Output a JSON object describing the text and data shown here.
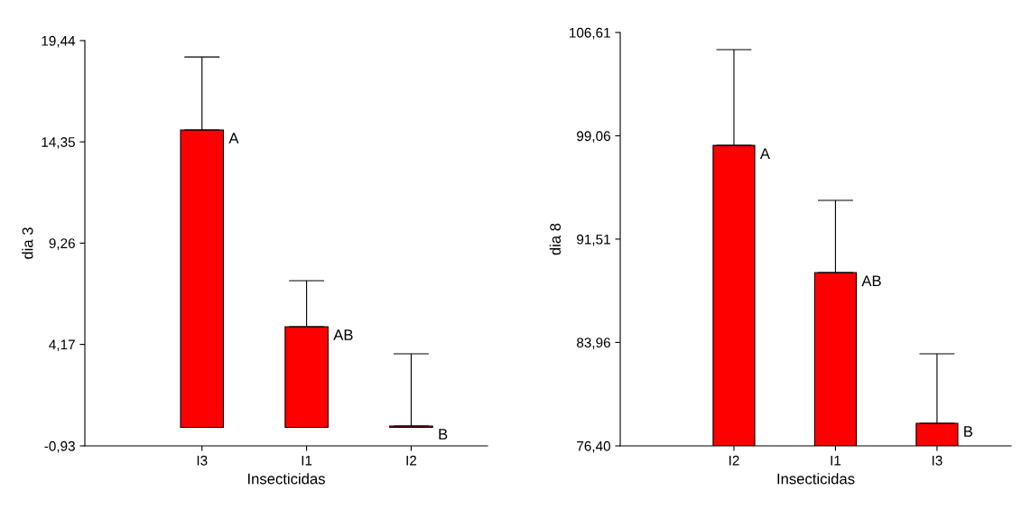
{
  "chart_data": [
    {
      "type": "bar",
      "xlabel": "Insecticidas",
      "ylabel": "dia 3",
      "categories": [
        "I3",
        "I1",
        "I2"
      ],
      "values": [
        14.95,
        5.06,
        0.07
      ],
      "color": "#ff0000",
      "errors": [
        [
          14.95,
          18.62
        ],
        [
          5.06,
          7.37
        ],
        [
          0.07,
          3.7
        ]
      ],
      "ylim": [
        -0.93,
        19.44
      ],
      "yticks": [
        {
          "value": -0.93,
          "label": "-0,93"
        },
        {
          "value": 4.17,
          "label": "4,17"
        },
        {
          "value": 9.26,
          "label": "9,26"
        },
        {
          "value": 14.35,
          "label": "14,35"
        },
        {
          "value": 19.44,
          "label": "19,44"
        }
      ],
      "grid": false,
      "legend": false,
      "annotations": [
        {
          "text": "A",
          "x": "I3",
          "y": 14.95
        },
        {
          "text": "AB",
          "x": "I1",
          "y": 5.06
        },
        {
          "text": "B",
          "x": "I2",
          "y": 0.07
        }
      ]
    },
    {
      "type": "bar",
      "xlabel": "Insecticidas",
      "ylabel": "dia 8",
      "categories": [
        "I2",
        "I1",
        "I3"
      ],
      "values": [
        98.36,
        89.06,
        78.05
      ],
      "color": "#ff0000",
      "errors": [
        [
          98.36,
          105.36
        ],
        [
          89.06,
          94.34
        ],
        [
          78.05,
          83.13
        ]
      ],
      "ylim": [
        76.4,
        106.61
      ],
      "yticks": [
        {
          "value": 76.4,
          "label": "76,40"
        },
        {
          "value": 83.96,
          "label": "83,96"
        },
        {
          "value": 91.51,
          "label": "91,51"
        },
        {
          "value": 99.06,
          "label": "99,06"
        },
        {
          "value": 106.61,
          "label": "106,61"
        }
      ],
      "grid": false,
      "legend": false,
      "annotations": [
        {
          "text": "A",
          "x": "I2",
          "y": 98.36
        },
        {
          "text": "AB",
          "x": "I1",
          "y": 89.06
        },
        {
          "text": "B",
          "x": "I3",
          "y": 78.05
        }
      ]
    }
  ]
}
